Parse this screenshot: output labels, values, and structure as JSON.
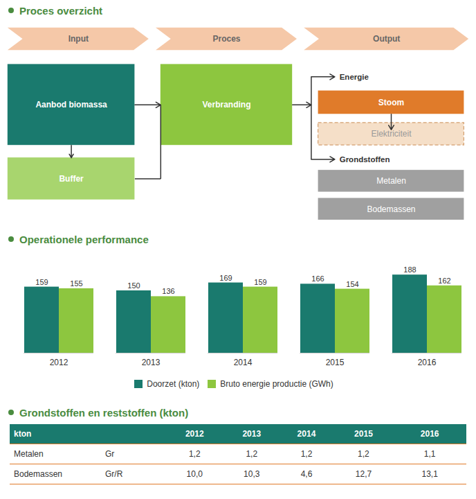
{
  "chart_data": [
    {
      "type": "diagram",
      "title": "Proces overzicht",
      "annotations": [
        {
          "text": "Input",
          "color": "#f5c8a8"
        },
        {
          "text": "Proces",
          "color": "#f5c8a8"
        },
        {
          "text": "Output",
          "color": "#f5c8a8"
        },
        {
          "text": "Aanbod biomassa",
          "color": "#1a7a6e"
        },
        {
          "text": "Buffer",
          "color": "#a8d56e"
        },
        {
          "text": "Verbranding",
          "color": "#8dc63f"
        },
        {
          "text": "Energie"
        },
        {
          "text": "Stoom",
          "color": "#e07b2a"
        },
        {
          "text": "Elektriciteit",
          "color": "#f5dfc8",
          "line_style": "dashed"
        },
        {
          "text": "Grondstoffen"
        },
        {
          "text": "Metalen",
          "color": "#a0a0a0"
        },
        {
          "text": "Bodemassen",
          "color": "#a0a0a0"
        }
      ]
    },
    {
      "type": "bar",
      "title": "Operationele performance",
      "categories": [
        "2012",
        "2013",
        "2014",
        "2015",
        "2016"
      ],
      "series": [
        {
          "name": "Doorzet (kton)",
          "color": "#1a7a6e",
          "values": [
            159,
            150,
            169,
            166,
            188
          ]
        },
        {
          "name": "Bruto energie productie (GWh)",
          "color": "#8dc63f",
          "values": [
            155,
            136,
            159,
            154,
            162
          ]
        }
      ],
      "ylim": [
        0,
        215
      ],
      "tick_labels": "x",
      "data_labels": true,
      "legend": "bottom",
      "grid": false
    },
    {
      "type": "table",
      "title": "Grondstoffen en reststoffen (kton)",
      "columns": [
        "kton",
        null,
        "2012",
        "2013",
        "2014",
        "2015",
        "2016"
      ],
      "rows": [
        {
          "name": "Metalen",
          "group": "Gr",
          "values": [
            1.2,
            1.2,
            1.2,
            1.2,
            1.1
          ],
          "value_labels": [
            "1,2",
            "1,2",
            "1,2",
            "1,2",
            "1,1"
          ]
        },
        {
          "name": "Bodemassen",
          "group": "Gr/R",
          "values": [
            10.0,
            10.3,
            4.6,
            12.7,
            13.1
          ],
          "value_labels": [
            "10,0",
            "10,3",
            "4,6",
            "12,7",
            "13,1"
          ]
        }
      ],
      "colors": [
        "#1a7a6e",
        "#e07b2a"
      ]
    }
  ]
}
